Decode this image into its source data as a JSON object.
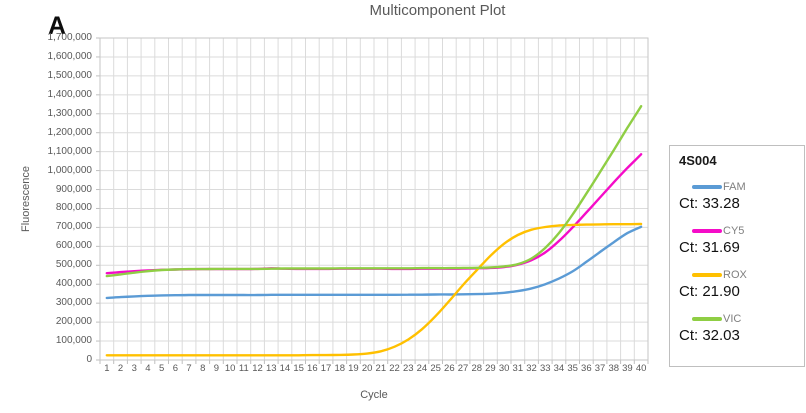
{
  "panel_label": "A",
  "legend": {
    "title": "4S004",
    "items": [
      {
        "label": "FAM",
        "ct_label": "Ct: 33.28",
        "color": "#5B9BD5"
      },
      {
        "label": "CY5",
        "ct_label": "Ct: 31.69",
        "color": "#F50CC8"
      },
      {
        "label": "ROX",
        "ct_label": "Ct: 21.90",
        "color": "#FFC000"
      },
      {
        "label": "VIC",
        "ct_label": "Ct: 32.03",
        "color": "#8FCE44"
      }
    ]
  },
  "chart_data": {
    "type": "line",
    "title": "Multicomponent Plot",
    "xlabel": "Cycle",
    "ylabel": "Fluorescence",
    "x": [
      1,
      2,
      3,
      4,
      5,
      6,
      7,
      8,
      9,
      10,
      11,
      12,
      13,
      14,
      15,
      16,
      17,
      18,
      19,
      20,
      21,
      22,
      23,
      24,
      25,
      26,
      27,
      28,
      29,
      30,
      31,
      32,
      33,
      34,
      35,
      36,
      37,
      38,
      39,
      40
    ],
    "ylim": [
      0,
      1700000
    ],
    "ytick_step": 100000,
    "grid": true,
    "legend_position": "right",
    "grid_color": "#DBDBDB",
    "border_color": "#C6C6C6",
    "tick_color": "#BFBFBF",
    "title_color": "#595959",
    "series": [
      {
        "name": "FAM",
        "ct": 33.28,
        "color": "#5B9BD5",
        "values": [
          328000,
          332000,
          336000,
          339000,
          341000,
          342000,
          343000,
          343000,
          343000,
          343000,
          343000,
          343000,
          344000,
          344000,
          344000,
          344000,
          344000,
          344000,
          344000,
          344000,
          344000,
          344000,
          345000,
          345000,
          346000,
          346000,
          347000,
          348000,
          350000,
          355000,
          364000,
          378000,
          400000,
          430000,
          468000,
          518000,
          570000,
          622000,
          670000,
          703000
        ]
      },
      {
        "name": "CY5",
        "ct": 31.69,
        "color": "#F50CC8",
        "values": [
          458000,
          464000,
          469000,
          473000,
          476000,
          478000,
          479000,
          480000,
          480000,
          480000,
          480000,
          481000,
          484000,
          482000,
          481000,
          481000,
          481000,
          482000,
          482000,
          482000,
          482000,
          481000,
          481000,
          482000,
          482000,
          482000,
          483000,
          484000,
          486000,
          491000,
          503000,
          527000,
          568000,
          628000,
          700000,
          778000,
          858000,
          938000,
          1014000,
          1086000
        ]
      },
      {
        "name": "ROX",
        "ct": 21.9,
        "color": "#FFC000",
        "values": [
          25000,
          25000,
          25000,
          25000,
          25000,
          25000,
          25000,
          25000,
          25000,
          25000,
          25000,
          25000,
          25000,
          25000,
          25000,
          26000,
          26000,
          27000,
          29000,
          34000,
          46000,
          70000,
          108000,
          162000,
          232000,
          312000,
          396000,
          474000,
          550000,
          614000,
          660000,
          688000,
          702000,
          710000,
          713000,
          715000,
          716000,
          717000,
          717000,
          718000
        ]
      },
      {
        "name": "VIC",
        "ct": 32.03,
        "color": "#8FCE44",
        "values": [
          443000,
          452000,
          461000,
          469000,
          475000,
          478000,
          480000,
          480000,
          481000,
          481000,
          481000,
          481000,
          482000,
          483000,
          483000,
          483000,
          483000,
          484000,
          484000,
          484000,
          484000,
          484000,
          484000,
          485000,
          485000,
          485000,
          486000,
          487000,
          489000,
          494000,
          506000,
          536000,
          592000,
          670000,
          768000,
          878000,
          992000,
          1108000,
          1226000,
          1340000
        ]
      }
    ]
  }
}
